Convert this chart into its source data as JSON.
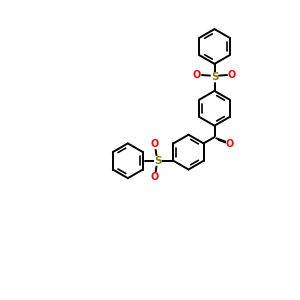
{
  "bg_color": "#ffffff",
  "line_color": "#000000",
  "red_color": "#ff0000",
  "sulfur_color": "#808000",
  "figsize": [
    3.0,
    3.0
  ],
  "dpi": 100,
  "lw": 1.4,
  "font_size_S": 7.5,
  "font_size_O": 7.0,
  "xlim": [
    0,
    10
  ],
  "ylim": [
    0,
    10
  ]
}
